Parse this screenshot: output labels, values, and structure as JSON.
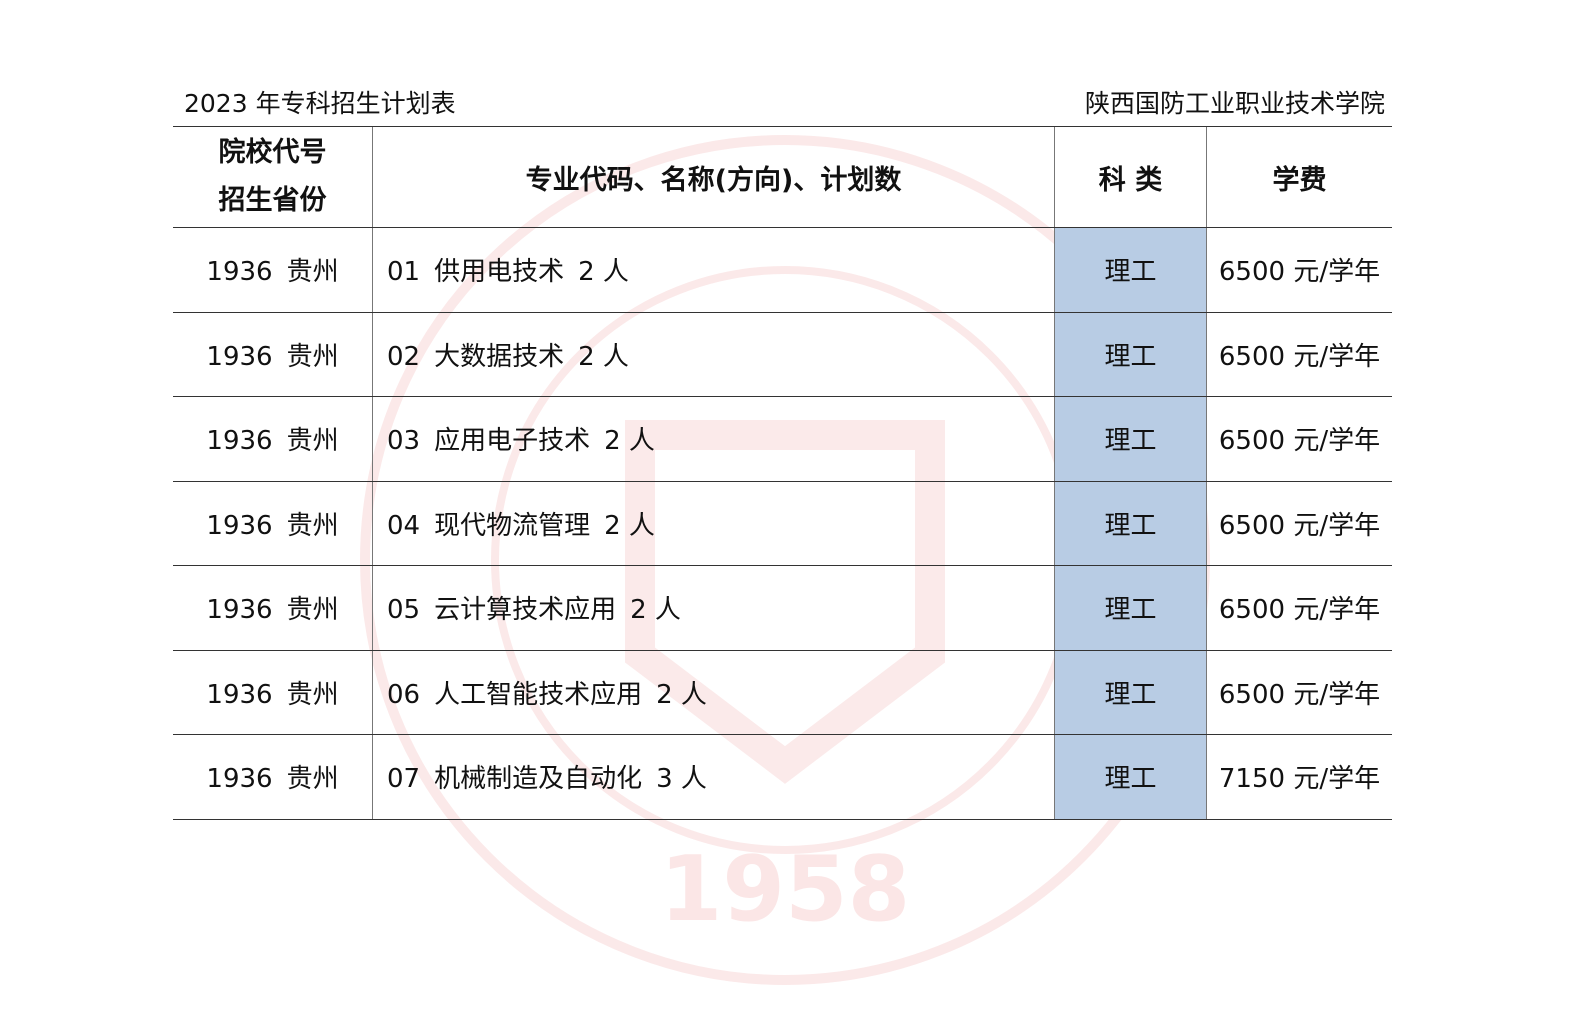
{
  "header": {
    "title": "2023 年专科招生计划表",
    "institution": "陕西国防工业职业技术学院"
  },
  "watermark": {
    "text": "1958",
    "color": "#f7dcdc"
  },
  "colors": {
    "category_fill": "#b8cce4"
  },
  "table": {
    "columns": {
      "col1_line1": "院校代号",
      "col1_line2": "招生省份",
      "col2": "专业代码、名称(方向)、计划数",
      "col3": "科 类",
      "col4": "学费"
    },
    "rows": [
      {
        "code": "1936",
        "province": "贵州",
        "major_code": "01",
        "major": "供用电技术",
        "plan": "2 人",
        "category": "理工",
        "fee": "6500 元/学年"
      },
      {
        "code": "1936",
        "province": "贵州",
        "major_code": "02",
        "major": "大数据技术",
        "plan": "2 人",
        "category": "理工",
        "fee": "6500 元/学年"
      },
      {
        "code": "1936",
        "province": "贵州",
        "major_code": "03",
        "major": "应用电子技术",
        "plan": "2 人",
        "category": "理工",
        "fee": "6500 元/学年"
      },
      {
        "code": "1936",
        "province": "贵州",
        "major_code": "04",
        "major": "现代物流管理",
        "plan": "2 人",
        "category": "理工",
        "fee": "6500 元/学年"
      },
      {
        "code": "1936",
        "province": "贵州",
        "major_code": "05",
        "major": "云计算技术应用",
        "plan": "2 人",
        "category": "理工",
        "fee": "6500 元/学年"
      },
      {
        "code": "1936",
        "province": "贵州",
        "major_code": "06",
        "major": "人工智能技术应用",
        "plan": "2 人",
        "category": "理工",
        "fee": "6500 元/学年"
      },
      {
        "code": "1936",
        "province": "贵州",
        "major_code": "07",
        "major": "机械制造及自动化",
        "plan": "3 人",
        "category": "理工",
        "fee": "7150 元/学年"
      }
    ]
  }
}
